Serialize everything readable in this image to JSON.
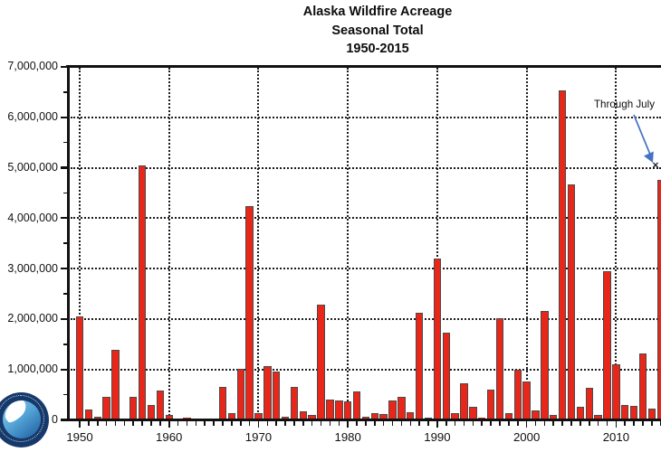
{
  "title": {
    "line1": "Alaska Wildfire Acreage",
    "line2": "Seasonal Total",
    "line3": "1950-2015"
  },
  "icons": {
    "x_marker": "✕",
    "logo_name": "noaa-emblem"
  },
  "colors": {
    "bar_fill": "#e8271a",
    "bar_border": "#4a4a4a",
    "axis": "#111111",
    "grid": "#1c1c1c",
    "arrow_blue": "#4472c4",
    "logo_navy": "#16396b",
    "logo_sky": "#56a6d8"
  },
  "chart_data": {
    "type": "bar",
    "title": "Alaska Wildfire Acreage — Seasonal Total — 1950-2015",
    "xlabel": "",
    "ylabel": "",
    "ylim": [
      0,
      7000000
    ],
    "y_tick_interval": 1000000,
    "y_minor_tick_interval": 500000,
    "grid": "dotted horizontal at each 1,000,000; dotted vertical at each decade",
    "legend": "none",
    "y_axis_labels": [
      "0",
      "1,000,000",
      "2,000,000",
      "3,000,000",
      "4,000,000",
      "5,000,000",
      "6,000,000",
      "7,000,000"
    ],
    "x_axis_labels": [
      "1950",
      "1960",
      "1970",
      "1980",
      "1990",
      "2000",
      "2010"
    ],
    "x": [
      1950,
      1951,
      1952,
      1953,
      1954,
      1955,
      1956,
      1957,
      1958,
      1959,
      1960,
      1961,
      1962,
      1963,
      1964,
      1965,
      1966,
      1967,
      1968,
      1969,
      1970,
      1971,
      1972,
      1973,
      1974,
      1975,
      1976,
      1977,
      1978,
      1979,
      1980,
      1981,
      1982,
      1983,
      1984,
      1985,
      1986,
      1987,
      1988,
      1989,
      1990,
      1991,
      1992,
      1993,
      1994,
      1995,
      1996,
      1997,
      1998,
      1999,
      2000,
      2001,
      2002,
      2003,
      2004,
      2005,
      2006,
      2007,
      2008,
      2009,
      2010,
      2011,
      2012,
      2013,
      2014,
      2015
    ],
    "values": [
      2050000,
      210000,
      60000,
      460000,
      1390000,
      30000,
      450000,
      5050000,
      290000,
      580000,
      90000,
      10000,
      40000,
      10000,
      10000,
      10000,
      650000,
      130000,
      1020000,
      4230000,
      130000,
      1060000,
      960000,
      60000,
      660000,
      170000,
      90000,
      2280000,
      410000,
      390000,
      360000,
      560000,
      70000,
      140000,
      110000,
      380000,
      450000,
      160000,
      2120000,
      50000,
      3190000,
      1730000,
      130000,
      720000,
      260000,
      40000,
      600000,
      2020000,
      130000,
      1000000,
      760000,
      190000,
      2160000,
      90000,
      6530000,
      4660000,
      260000,
      640000,
      100000,
      2950000,
      1110000,
      290000,
      280000,
      1320000,
      230000,
      4750000
    ],
    "annotation": {
      "label": "Through July",
      "year": 2015,
      "value": 5050000,
      "marker": "x"
    }
  }
}
